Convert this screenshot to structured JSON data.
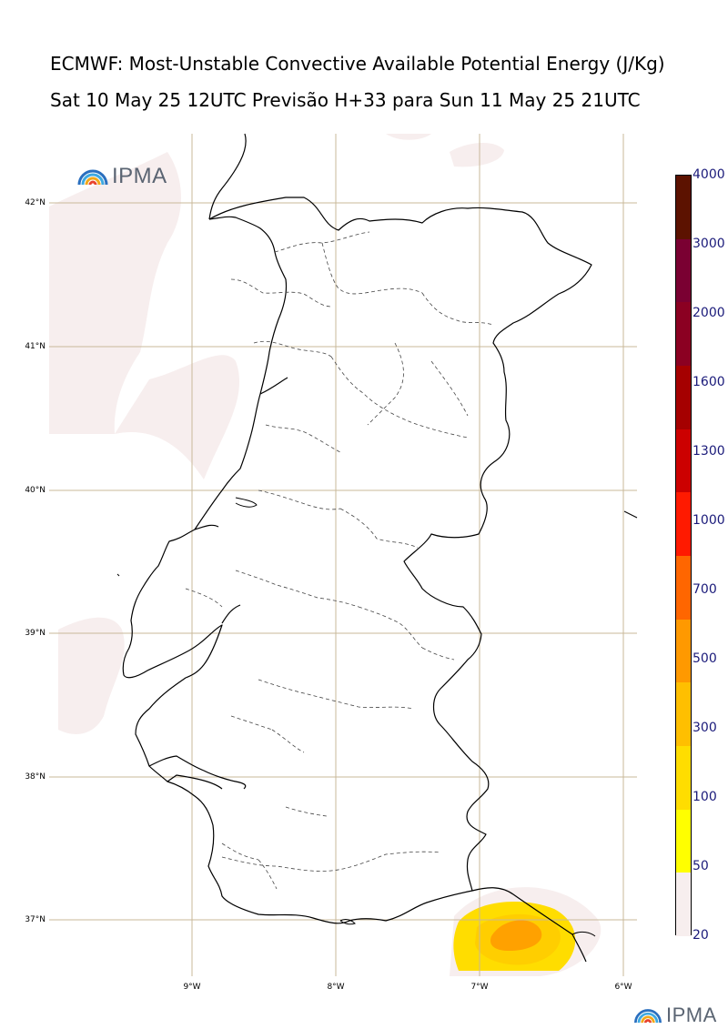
{
  "header": {
    "title": "ECMWF: Most-Unstable Convective Available Potential Energy (J/Kg)",
    "subtitle": "Sat 10 May 25 12UTC Previsão H+33 para Sun 11 May 25 21UTC"
  },
  "map": {
    "lat_labels": [
      "42°N",
      "41°N",
      "40°N",
      "39°N",
      "38°N",
      "37°N"
    ],
    "lon_labels": [
      "9°W",
      "8°W",
      "7°W",
      "6°W"
    ],
    "gridline_color": "#c8b89a",
    "coast_color": "#000000"
  },
  "logo": {
    "text": "IPMA",
    "icon": "ipma-rainbow-icon"
  },
  "colorbar": {
    "ticks": [
      "4000",
      "3000",
      "2000",
      "1600",
      "1300",
      "1000",
      "700",
      "500",
      "300",
      "100",
      "50",
      "20"
    ],
    "colors": [
      "#f7eeee",
      "#ffff00",
      "#ffdd00",
      "#ffbf00",
      "#ff9900",
      "#ff6600",
      "#ff1a00",
      "#cc0000",
      "#a50000",
      "#8b0022",
      "#7a0032",
      "#5c1200"
    ]
  }
}
